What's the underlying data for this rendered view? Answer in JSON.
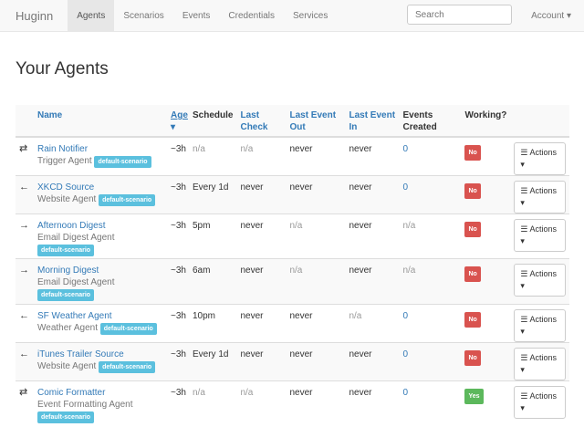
{
  "nav": {
    "brand": "Huginn",
    "items": [
      "Agents",
      "Scenarios",
      "Events",
      "Credentials",
      "Services"
    ],
    "active": "Agents",
    "search_placeholder": "Search",
    "account": "Account ▾"
  },
  "page_title": "Your Agents",
  "table": {
    "headers": {
      "name": "Name",
      "age": "Age",
      "sort_icon": "▾",
      "schedule": "Schedule",
      "last_check": "Last Check",
      "last_event_out": "Last Event Out",
      "last_event_in": "Last Event In",
      "events_created": "Events Created",
      "working": "Working?"
    },
    "actions_label": "Actions ▾",
    "rows": [
      {
        "icon": "⇄",
        "name": "Rain Notifier",
        "type": "Trigger Agent",
        "scenario": "default-scenario",
        "age": "~3h",
        "schedule": "n/a",
        "last_check": "n/a",
        "out": "never",
        "in": "never",
        "events": "0",
        "working": "No"
      },
      {
        "icon": "←",
        "name": "XKCD Source",
        "type": "Website Agent",
        "scenario": "default-scenario",
        "age": "~3h",
        "schedule": "Every 1d",
        "last_check": "never",
        "out": "never",
        "in": "never",
        "events": "0",
        "working": "No"
      },
      {
        "icon": "→",
        "name": "Afternoon Digest",
        "type": "Email Digest Agent",
        "scenario": "default-scenario",
        "age": "~3h",
        "schedule": "5pm",
        "last_check": "never",
        "out": "n/a",
        "in": "never",
        "events": "n/a",
        "working": "No"
      },
      {
        "icon": "→",
        "name": "Morning Digest",
        "type": "Email Digest Agent",
        "scenario": "default-scenario",
        "age": "~3h",
        "schedule": "6am",
        "last_check": "never",
        "out": "n/a",
        "in": "never",
        "events": "n/a",
        "working": "No"
      },
      {
        "icon": "←",
        "name": "SF Weather Agent",
        "type": "Weather Agent",
        "scenario": "default-scenario",
        "age": "~3h",
        "schedule": "10pm",
        "last_check": "never",
        "out": "never",
        "in": "n/a",
        "events": "0",
        "working": "No"
      },
      {
        "icon": "←",
        "name": "iTunes Trailer Source",
        "type": "Website Agent",
        "scenario": "default-scenario",
        "age": "~3h",
        "schedule": "Every 1d",
        "last_check": "never",
        "out": "never",
        "in": "never",
        "events": "0",
        "working": "No"
      },
      {
        "icon": "⇄",
        "name": "Comic Formatter",
        "type": "Event Formatting Agent",
        "scenario": "default-scenario",
        "age": "~3h",
        "schedule": "n/a",
        "last_check": "n/a",
        "out": "never",
        "in": "never",
        "events": "0",
        "working": "Yes"
      }
    ]
  }
}
